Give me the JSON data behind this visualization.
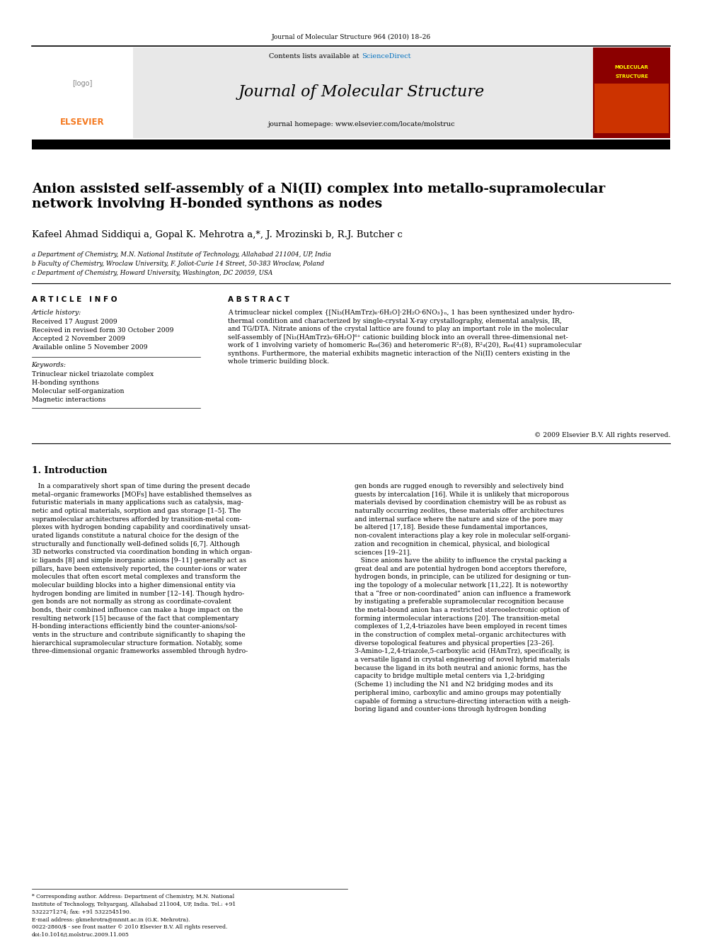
{
  "page_width": 9.92,
  "page_height": 13.23,
  "bg_color": "#ffffff",
  "journal_ref": "Journal of Molecular Structure 964 (2010) 18–26",
  "header_bg": "#e8e8e8",
  "header_text1": "Contents lists available at",
  "header_sciencedirect": "ScienceDirect",
  "journal_name": "Journal of Molecular Structure",
  "journal_homepage": "journal homepage: www.elsevier.com/locate/molstruc",
  "title": "Anion assisted self-assembly of a Ni(II) complex into metallo-supramolecular\nnetwork involving H-bonded synthons as nodes",
  "authors": "Kafeel Ahmad Siddiqui a, Gopal K. Mehrotra a,*, J. Mrozinski b, R.J. Butcher c",
  "affil1": "a Department of Chemistry, M.N. National Institute of Technology, Allahabad 211004, UP, India",
  "affil2": "b Faculty of Chemistry, Wroclaw University, F. Joliot-Curie 14 Street, 50-383 Wroclaw, Poland",
  "affil3": "c Department of Chemistry, Howard University, Washington, DC 20059, USA",
  "article_info_header": "A R T I C L E   I N F O",
  "article_history_label": "Article history:",
  "received": "Received 17 August 2009",
  "received_revised": "Received in revised form 30 October 2009",
  "accepted": "Accepted 2 November 2009",
  "available": "Available online 5 November 2009",
  "keywords_label": "Keywords:",
  "keyword1": "Trinuclear nickel triazolate complex",
  "keyword2": "H-bonding synthons",
  "keyword3": "Molecular self-organization",
  "keyword4": "Magnetic interactions",
  "abstract_header": "A B S T R A C T",
  "abstract_text": "A trimuclear nickel complex {[Ni₃(HAmTrz)₆·6H₂O]·2H₂O·6NO₃}ₙ, 1 has been synthesized under hydro-\nthermal condition and characterized by single-crystal X-ray crystallography, elemental analysis, IR,\nand TG/DTA. Nitrate anions of the crystal lattice are found to play an important role in the molecular\nself-assembly of [Ni₃(HAmTrz)₆·6H₂O]⁶⁺ cationic building block into an overall three-dimensional net-\nwork of 1 involving variety of homomeric R₆₆(36) and heteromeric R²₂(8), R²₄(20), R₆₄(41) supramolecular\nsynthons. Furthermore, the material exhibits magnetic interaction of the Ni(II) centers existing in the\nwhole trimeric building block.",
  "copyright": "© 2009 Elsevier B.V. All rights reserved.",
  "intro_header": "1. Introduction",
  "intro_col1": "   In a comparatively short span of time during the present decade\nmetal–organic frameworks [MOFs] have established themselves as\nfuturistic materials in many applications such as catalysis, mag-\nnetic and optical materials, sorption and gas storage [1–5]. The\nsupramolecular architectures afforded by transition-metal com-\nplexes with hydrogen bonding capability and coordinatively unsat-\nurated ligands constitute a natural choice for the design of the\nstructurally and functionally well-defined solids [6,7]. Although\n3D networks constructed via coordination bonding in which organ-\nic ligands [8] and simple inorganic anions [9–11] generally act as\npillars, have been extensively reported, the counter-ions or water\nmolecules that often escort metal complexes and transform the\nmolecular building blocks into a higher dimensional entity via\nhydrogen bonding are limited in number [12–14]. Though hydro-\ngen bonds are not normally as strong as coordinate-covalent\nbonds, their combined influence can make a huge impact on the\nresulting network [15] because of the fact that complementary\nH-bonding interactions efficiently bind the counter-anions/sol-\nvents in the structure and contribute significantly to shaping the\nhierarchical supramolecular structure formation. Notably, some\nthree-dimensional organic frameworks assembled through hydro-",
  "intro_col2": "gen bonds are rugged enough to reversibly and selectively bind\nguests by intercalation [16]. While it is unlikely that microporous\nmaterials devised by coordination chemistry will be as robust as\nnaturally occurring zeolites, these materials offer architectures\nand internal surface where the nature and size of the pore may\nbe altered [17,18]. Beside these fundamental importances,\nnon-covalent interactions play a key role in molecular self-organi-\nzation and recognition in chemical, physical, and biological\nsciences [19–21].\n   Since anions have the ability to influence the crystal packing a\ngreat deal and are potential hydrogen bond acceptors therefore,\nhydrogen bonds, in principle, can be utilized for designing or tun-\ning the topology of a molecular network [11,22]. It is noteworthy\nthat a “free or non-coordinated” anion can influence a framework\nby instigating a preferable supramolecular recognition because\nthe metal-bound anion has a restricted stereoelectronic option of\nforming intermolecular interactions [20]. The transition-metal\ncomplexes of 1,2,4-triazoles have been employed in recent times\nin the construction of complex metal–organic architectures with\ndiverse topological features and physical properties [23–26].\n3-Amino-1,2,4-triazole,5-carboxylic acid (HAmTrz), specifically, is\na versatile ligand in crystal engineering of novel hybrid materials\nbecause the ligand in its both neutral and anionic forms, has the\ncapacity to bridge multiple metal centers via 1,2-bridging\n(Scheme 1) including the N1 and N2 bridging modes and its\nperipheral imino, carboxylic and amino groups may potentially\ncapable of forming a structure-directing interaction with a neigh-\nboring ligand and counter-ions through hydrogen bonding",
  "footer1": "* Corresponding author. Address: Department of Chemistry, M.N. National",
  "footer1b": "Institute of Technology, Teliyarganj, Allahabad 211004, UP, India. Tel.: +91",
  "footer1c": "5322271274; fax: +91 5322545190.",
  "footer2": "E-mail address: gkmehrotra@mnnit.ac.in (G.K. Mehrotra).",
  "footer3": "0022-2860/$ - see front matter © 2010 Elsevier B.V. All rights reserved.",
  "footer4": "doi:10.1016/j.molstruc.2009.11.005",
  "elsevier_color": "#F47920",
  "sd_color": "#0070C0"
}
